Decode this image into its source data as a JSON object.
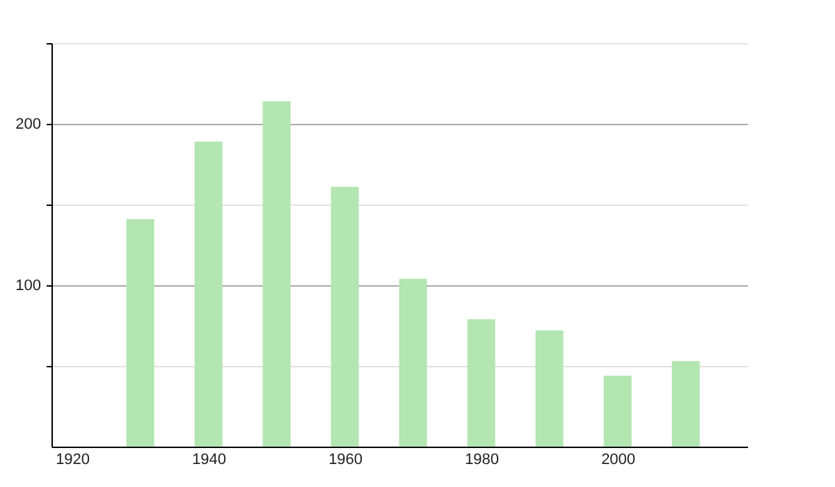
{
  "chart_data": {
    "type": "bar",
    "x": [
      1930,
      1940,
      1950,
      1960,
      1970,
      1980,
      1990,
      2000,
      2010
    ],
    "values": [
      141,
      189,
      214,
      161,
      104,
      79,
      72,
      44,
      53
    ],
    "color": "#b3e6b1",
    "xlim": [
      1918,
      2018
    ],
    "xticks": [
      1920,
      1940,
      1960,
      1980,
      2000
    ],
    "ylim": [
      0,
      250
    ],
    "yticks": [
      {
        "value": 50,
        "label": null
      },
      100,
      {
        "value": 150,
        "label": null
      },
      200,
      {
        "value": 250,
        "label": null
      }
    ],
    "grid": "y"
  }
}
